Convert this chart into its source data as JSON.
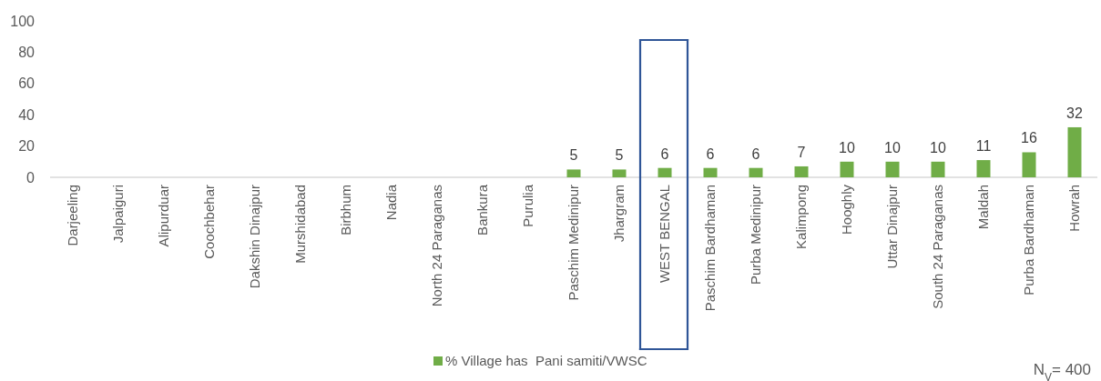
{
  "chart_data": {
    "type": "bar",
    "categories": [
      "Darjeeling",
      "Jalpaiguri",
      "Alipurduar",
      "Coochbehar",
      "Dakshin Dinajpur",
      "Murshidabad",
      "Birbhum",
      "Nadia",
      "North 24 Paraganas",
      "Bankura",
      "Purulia",
      "Paschim Medinipur",
      "Jhargram",
      "WEST BENGAL",
      "Paschim Bardhaman",
      "Purba Medinipur",
      "Kalimpong",
      "Hooghly",
      "Uttar Dinajpur",
      "South 24 Paraganas",
      "Maldah",
      "Purba Bardhaman",
      "Howrah"
    ],
    "series": [
      {
        "name": "% Village has  Pani samiti/VWSC",
        "color": "#70ad47",
        "values": [
          0,
          0,
          0,
          0,
          0,
          0,
          0,
          0,
          0,
          0,
          0,
          5,
          5,
          6,
          6,
          6,
          7,
          10,
          10,
          10,
          11,
          16,
          32
        ],
        "value_labels": [
          null,
          null,
          null,
          null,
          null,
          null,
          null,
          null,
          null,
          null,
          null,
          "5",
          "5",
          "6",
          "6",
          "6",
          "7",
          "10",
          "10",
          "10",
          "11",
          "16",
          "32"
        ]
      }
    ],
    "ylim": [
      0,
      100
    ],
    "yticks": [
      0,
      20,
      40,
      60,
      80,
      100
    ],
    "grid": false,
    "legend": "bottom",
    "annotations": [
      "N$_{V}$= 400"
    ]
  }
}
